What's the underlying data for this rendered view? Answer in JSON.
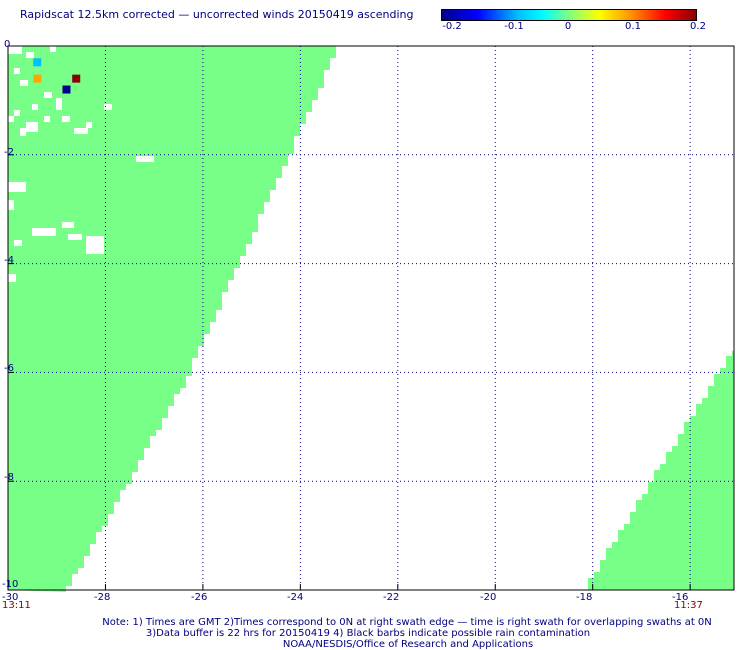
{
  "title": "Rapidscat 12.5km corrected — uncorrected winds 20150419 ascending",
  "colorbar": {
    "ticks": [
      "-0.2",
      "-0.1",
      "0",
      "0.1",
      "0.2"
    ],
    "range": [
      -0.2,
      0.2
    ]
  },
  "axes": {
    "x_ticks": [
      "-30",
      "-28",
      "-26",
      "-24",
      "-22",
      "-20",
      "-18",
      "-16"
    ],
    "y_ticks": [
      "0",
      "-2",
      "-4",
      "-6",
      "-8",
      "-10"
    ],
    "lon_range": [
      -30,
      -15.1
    ],
    "lat_range": [
      -10,
      0
    ]
  },
  "times": {
    "left": "13:11",
    "right": "11:37"
  },
  "notes": {
    "line1": "Note: 1) Times are GMT 2)Times correspond to 0N at right swath edge — time is right swath for overlapping swaths at 0N",
    "line2": "3)Data buffer is 22 hrs for 20150419 4) Black barbs indicate possible rain contamination",
    "line3": "NOAA/NESDIS/Office of Research and Applications"
  },
  "colors": {
    "swath": "#77ff88",
    "grid": "#000080",
    "frame": "#000000",
    "time": "#8b0000"
  },
  "anomalies": [
    {
      "lon": -29.4,
      "lat": -0.3,
      "value": -0.08,
      "color": "#00bfff"
    },
    {
      "lon": -29.4,
      "lat": -0.6,
      "value": 0.1,
      "color": "#ffa500"
    },
    {
      "lon": -28.6,
      "lat": -0.6,
      "value": 0.2,
      "color": "#8b0000"
    },
    {
      "lon": -28.8,
      "lat": -0.8,
      "value": -0.2,
      "color": "#00008b"
    }
  ]
}
